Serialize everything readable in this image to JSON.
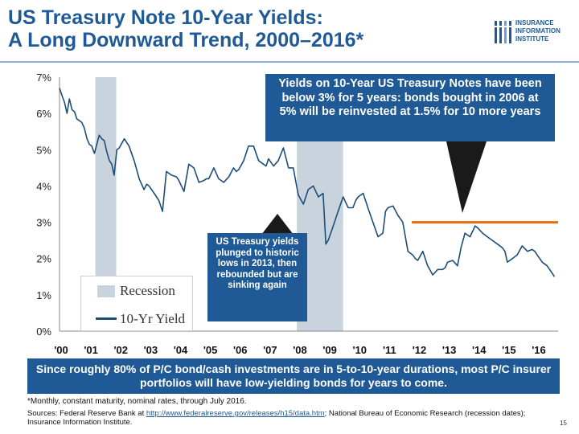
{
  "header": {
    "title_line1": "US Treasury Note 10-Year Yields:",
    "title_line2": "A Long Downward Trend, 2000–2016*",
    "logo_line1": "INSURANCE",
    "logo_line2": "INFORMATION",
    "logo_line3": "INSTITUTE"
  },
  "callouts": {
    "top_right": "Yields on 10-Year US Treasury Notes have been below 3% for 5 years: bonds bought in 2006 at 5% will be reinvested at 1.5% for 10 more years",
    "middle": "US Treasury yields plunged to historic lows in 2013, then rebounded but are sinking again"
  },
  "legend": {
    "recession_label": "Recession",
    "yield_label": "10-Yr Yield"
  },
  "banner": "Since roughly 80% of P/C bond/cash investments are in 5-to-10-year durations, most P/C insurer portfolios will have low-yielding bonds for years to come.",
  "footer": {
    "footnote": "*Monthly, constant maturity, nominal rates, through July 2016.",
    "sources_prefix": "Sources: Federal Reserve Bank at ",
    "sources_link": "http://www.federalreserve.gov/releases/h15/data.htm",
    "sources_suffix": "; National Bureau of Economic Research (recession dates); Insurance Information Institute.",
    "page_number": "15"
  },
  "colors": {
    "title": "#1f5a96",
    "callout_bg": "#1f5a96",
    "line": "#1e4d78",
    "recession": "#c9d3de",
    "reference_line": "#e46c0a"
  },
  "chart_data": {
    "type": "line",
    "title": "",
    "xlabel": "",
    "ylabel": "",
    "ylim": [
      0,
      7
    ],
    "y_ticks": [
      "0%",
      "1%",
      "2%",
      "3%",
      "4%",
      "5%",
      "6%",
      "7%"
    ],
    "x_ticks": [
      "'00",
      "'01",
      "'02",
      "'03",
      "'04",
      "'05",
      "'06",
      "'07",
      "'08",
      "'09",
      "'10",
      "'11",
      "'12",
      "'13",
      "'14",
      "'15",
      "'16"
    ],
    "xlim": [
      2000.0,
      2016.7
    ],
    "legend_position": "bottom-left",
    "recessions": [
      {
        "start": 2001.2,
        "end": 2001.9
      },
      {
        "start": 2007.95,
        "end": 2009.5
      }
    ],
    "reference_line": {
      "y": 3.0,
      "x_start": 2011.8,
      "x_end": 2016.7
    },
    "series": [
      {
        "name": "10-Yr Yield",
        "x": [
          2000.0,
          2000.08,
          2000.17,
          2000.25,
          2000.33,
          2000.42,
          2000.5,
          2000.58,
          2000.67,
          2000.75,
          2000.83,
          2000.92,
          2001.0,
          2001.08,
          2001.17,
          2001.25,
          2001.33,
          2001.42,
          2001.5,
          2001.58,
          2001.67,
          2001.75,
          2001.83,
          2001.92,
          2002.0,
          2002.17,
          2002.33,
          2002.5,
          2002.67,
          2002.83,
          2002.92,
          2003.0,
          2003.17,
          2003.33,
          2003.45,
          2003.58,
          2003.75,
          2003.92,
          2004.0,
          2004.17,
          2004.33,
          2004.5,
          2004.67,
          2004.83,
          2004.92,
          2005.0,
          2005.17,
          2005.33,
          2005.5,
          2005.67,
          2005.83,
          2005.92,
          2006.0,
          2006.17,
          2006.33,
          2006.5,
          2006.67,
          2006.83,
          2006.92,
          2007.0,
          2007.17,
          2007.33,
          2007.5,
          2007.67,
          2007.83,
          2007.92,
          2008.0,
          2008.17,
          2008.33,
          2008.5,
          2008.67,
          2008.83,
          2008.92,
          2009.0,
          2009.17,
          2009.33,
          2009.5,
          2009.67,
          2009.83,
          2009.92,
          2010.0,
          2010.17,
          2010.33,
          2010.5,
          2010.67,
          2010.83,
          2010.92,
          2011.0,
          2011.17,
          2011.33,
          2011.5,
          2011.67,
          2011.83,
          2011.92,
          2012.0,
          2012.17,
          2012.33,
          2012.5,
          2012.67,
          2012.83,
          2012.92,
          2013.0,
          2013.17,
          2013.33,
          2013.45,
          2013.58,
          2013.75,
          2013.92,
          2014.0,
          2014.17,
          2014.33,
          2014.5,
          2014.67,
          2014.83,
          2014.92,
          2015.0,
          2015.17,
          2015.33,
          2015.5,
          2015.67,
          2015.83,
          2015.92,
          2016.0,
          2016.17,
          2016.33,
          2016.5,
          2016.58
        ],
        "values": [
          6.7,
          6.5,
          6.3,
          6.0,
          6.4,
          6.1,
          6.05,
          5.85,
          5.8,
          5.75,
          5.6,
          5.3,
          5.15,
          5.1,
          4.9,
          5.15,
          5.4,
          5.3,
          5.25,
          4.95,
          4.7,
          4.6,
          4.3,
          5.0,
          5.05,
          5.3,
          5.1,
          4.7,
          4.2,
          3.9,
          4.05,
          4.0,
          3.8,
          3.6,
          3.3,
          4.4,
          4.3,
          4.25,
          4.15,
          3.85,
          4.6,
          4.5,
          4.1,
          4.15,
          4.2,
          4.2,
          4.5,
          4.2,
          4.1,
          4.25,
          4.5,
          4.4,
          4.45,
          4.7,
          5.1,
          5.1,
          4.7,
          4.6,
          4.55,
          4.75,
          4.55,
          4.7,
          5.05,
          4.5,
          4.5,
          4.1,
          3.75,
          3.5,
          3.9,
          4.0,
          3.7,
          3.8,
          2.4,
          2.5,
          2.9,
          3.3,
          3.7,
          3.4,
          3.4,
          3.6,
          3.7,
          3.8,
          3.4,
          3.0,
          2.6,
          2.7,
          3.3,
          3.4,
          3.45,
          3.2,
          3.0,
          2.2,
          2.1,
          2.0,
          1.95,
          2.2,
          1.8,
          1.55,
          1.7,
          1.7,
          1.75,
          1.9,
          1.95,
          1.8,
          2.3,
          2.7,
          2.6,
          2.9,
          2.85,
          2.7,
          2.6,
          2.5,
          2.4,
          2.3,
          2.2,
          1.9,
          2.0,
          2.1,
          2.35,
          2.2,
          2.25,
          2.2,
          2.1,
          1.9,
          1.8,
          1.6,
          1.5
        ]
      }
    ]
  }
}
